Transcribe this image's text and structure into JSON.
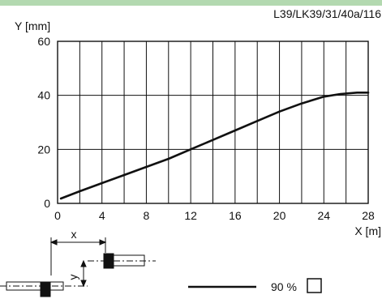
{
  "top_bar_color": "#b3d9b0",
  "chart_data": {
    "type": "line",
    "code": "L39/LK39/31/40a/116",
    "xlabel": "X [m]",
    "ylabel": "Y [mm]",
    "xlim": [
      0,
      28
    ],
    "ylim": [
      0,
      60
    ],
    "x_ticks": [
      "0",
      "4",
      "8",
      "12",
      "16",
      "20",
      "24",
      "28"
    ],
    "y_ticks": [
      "0",
      "20",
      "40",
      "60"
    ],
    "x_grid_step": 2,
    "y_grid_step": 20,
    "grid": true,
    "series": [
      {
        "x": [
          0.3,
          2,
          4,
          6,
          8,
          10,
          12,
          14,
          16,
          18,
          20,
          22,
          24,
          25.5,
          27,
          28
        ],
        "y": [
          1.8,
          4.5,
          7.5,
          10.5,
          13.5,
          16.5,
          20,
          23.5,
          27,
          30.5,
          34,
          37,
          39.5,
          40.5,
          41,
          41
        ]
      }
    ],
    "legend_label": "90 %"
  },
  "diagram": {
    "x_label": "x",
    "y_label": "y"
  }
}
